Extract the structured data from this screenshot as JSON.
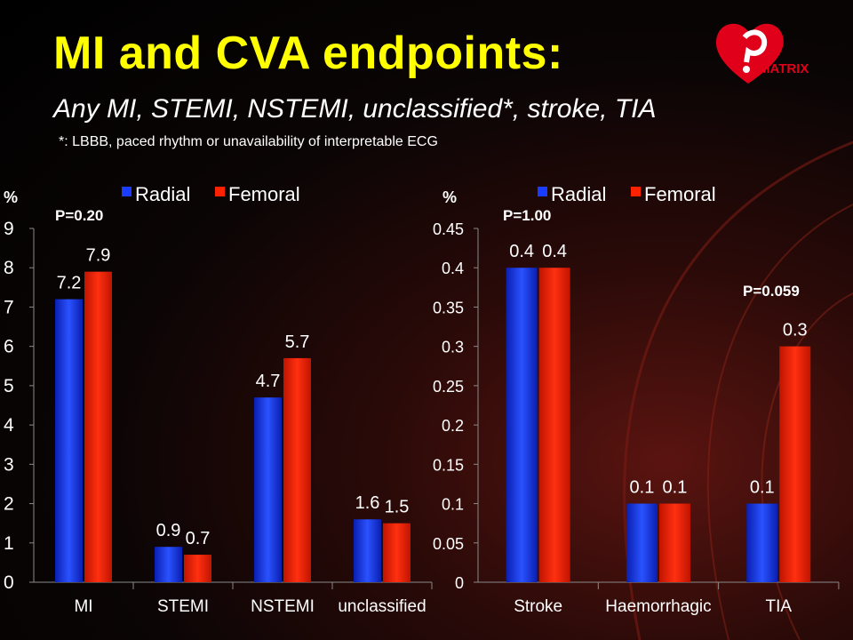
{
  "slide": {
    "title": "MI and CVA endpoints:",
    "subtitle": "Any MI, STEMI, NSTEMI, unclassified*, stroke, TIA",
    "footnote": "*: LBBB, paced rhythm or unavailability of interpretable ECG",
    "logo_text": "MATRIX"
  },
  "colors": {
    "radial": "#1a3cff",
    "femoral": "#ff2200",
    "title": "#ffff00"
  },
  "chart_data": [
    {
      "type": "bar",
      "ylabel": "%",
      "ylim": [
        0,
        9
      ],
      "yticks": [
        "0",
        "1",
        "2",
        "3",
        "4",
        "5",
        "6",
        "7",
        "8",
        "9"
      ],
      "categories": [
        "MI",
        "STEMI",
        "NSTEMI",
        "unclassified"
      ],
      "series": [
        {
          "name": "Radial",
          "values": [
            7.2,
            0.9,
            4.7,
            1.6
          ],
          "labels": [
            "7.2",
            "0.9",
            "4.7",
            "1.6"
          ]
        },
        {
          "name": "Femoral",
          "values": [
            7.9,
            0.7,
            5.7,
            1.5
          ],
          "labels": [
            "7.9",
            "0.7",
            "5.7",
            "1.5"
          ]
        }
      ],
      "annotations": [
        "P=0.20"
      ],
      "legend": "top",
      "grid": false
    },
    {
      "type": "bar",
      "ylabel": "%",
      "ylim": [
        0,
        0.45
      ],
      "yticks": [
        "0",
        "0.05",
        "0.1",
        "0.15",
        "0.2",
        "0.25",
        "0.3",
        "0.35",
        "0.4",
        "0.45"
      ],
      "categories": [
        "Stroke",
        "Haemorrhagic",
        "TIA"
      ],
      "series": [
        {
          "name": "Radial",
          "values": [
            0.4,
            0.1,
            0.1
          ],
          "labels": [
            "0.4",
            "0.1",
            "0.1"
          ]
        },
        {
          "name": "Femoral",
          "values": [
            0.4,
            0.1,
            0.3
          ],
          "labels": [
            "0.4",
            "0.1",
            "0.3"
          ]
        }
      ],
      "annotations": [
        "P=1.00",
        "P=0.059"
      ],
      "legend": "top",
      "grid": false
    }
  ]
}
